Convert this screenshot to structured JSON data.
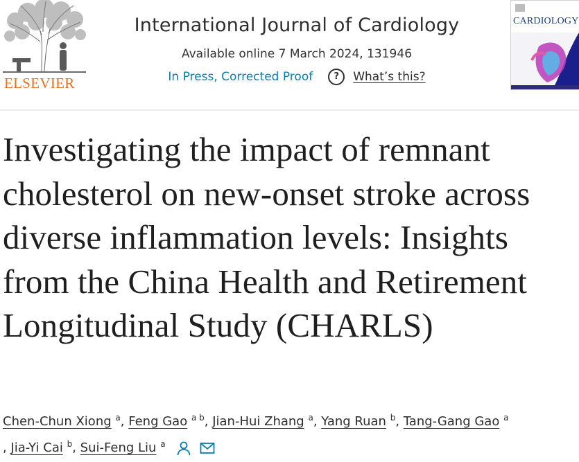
{
  "header": {
    "publisher": "ELSEVIER",
    "journal_title": "International Journal of Cardiology",
    "availability": "Available online 7 March 2024, 131946",
    "status": "In Press, Corrected Proof",
    "help_link": "What’s this?",
    "help_icon_glyph": "?",
    "cover_title": "CARDIOLOGY"
  },
  "article": {
    "title": "Investigating the impact of remnant cholesterol on new-onset stroke across diverse inflammation levels: Insights from the China Health and Retirement Longitudinal Study (CHARLS)"
  },
  "authors": [
    {
      "name": "Chen-Chun Xiong",
      "affiliation": "a"
    },
    {
      "name": "Feng Gao",
      "affiliation": "a b"
    },
    {
      "name": "Jian-Hui Zhang",
      "affiliation": "a"
    },
    {
      "name": "Yang Ruan",
      "affiliation": "b"
    },
    {
      "name": "Tang-Gang Gao",
      "affiliation": "a"
    },
    {
      "name": "Jia-Yi Cai",
      "affiliation": "b"
    },
    {
      "name": "Sui-Feng Liu",
      "affiliation": "a"
    }
  ],
  "separator": ",",
  "icons": {
    "person": "person-icon",
    "email": "email-icon"
  },
  "colors": {
    "publisher_orange": "#e9711c",
    "link_blue": "#0c7db1",
    "text": "#1f1f1f",
    "cover_blue": "#1a3c8c"
  }
}
